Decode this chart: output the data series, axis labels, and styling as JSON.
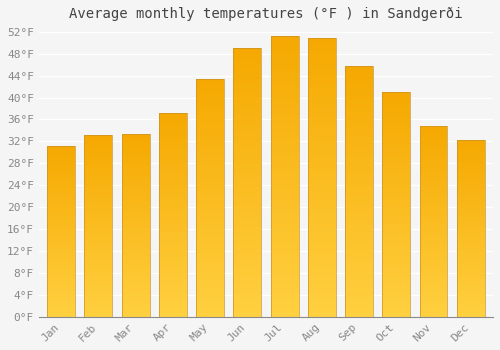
{
  "title": "Average monthly temperatures (°F ) in Sandgerði",
  "months": [
    "Jan",
    "Feb",
    "Mar",
    "Apr",
    "May",
    "Jun",
    "Jul",
    "Aug",
    "Sep",
    "Oct",
    "Nov",
    "Dec"
  ],
  "values": [
    31.1,
    33.1,
    33.4,
    37.2,
    43.3,
    49.1,
    51.3,
    50.9,
    45.7,
    41.0,
    34.9,
    32.2
  ],
  "bar_color_bottom": "#FFD040",
  "bar_color_top": "#F5A800",
  "bar_edge_color": "#C8922A",
  "background_color": "#F5F5F5",
  "grid_color": "#FFFFFF",
  "ytick_min": 0,
  "ytick_max": 52,
  "ytick_step": 4,
  "title_fontsize": 10,
  "tick_fontsize": 8,
  "font_family": "monospace",
  "bar_width": 0.75
}
